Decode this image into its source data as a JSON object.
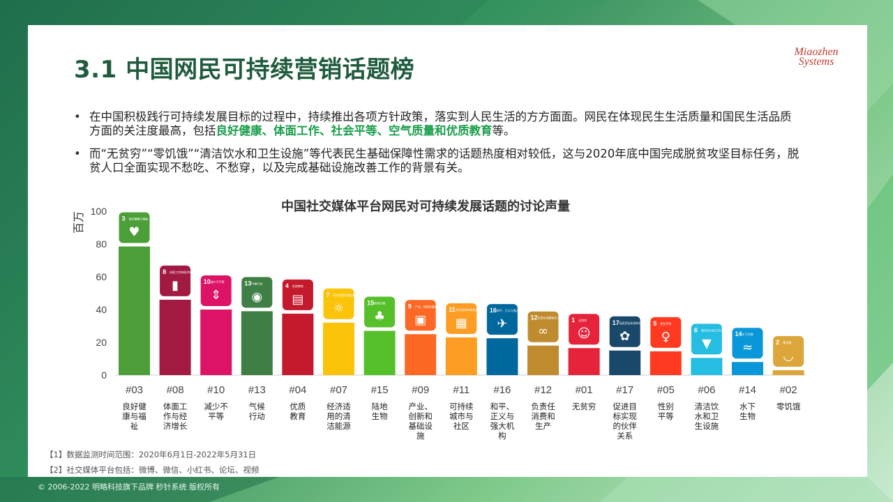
{
  "slide": {
    "title": "3.1 中国网民可持续营销话题榜",
    "logo_line1": "Miaozhen",
    "logo_line2": "Systems",
    "bullet1_part1": "在中国积极践行可持续发展目标的过程中，持续推出各项方针政策，落实到人民生活的方方面面。网民在体现民生生活质量和国民生活品质方面的关注度最高，包括",
    "bullet1_highlight": "良好健康、体面工作、社会平等、空气质量和优质教育",
    "bullet1_part2": "等。",
    "bullet2": "而“无贫穷”“零饥饿”“清洁饮水和卫生设施”等代表民生基础保障性需求的话题热度相对较低，这与2020年底中国完成脱贫攻坚目标任务，脱贫人口全面实现不愁吃、不愁穿，以及完成基础设施改善工作的背景有关。",
    "footnote1": "【1】数据监测时间范围：2020年6月1日-2022年5月31日",
    "footnote2": "【2】社交媒体平台包括：微博、微信、小红书、论坛、视频",
    "copyright": "© 2006-2022 明略科技旗下品牌 秒针系统 版权所有",
    "highlight_color": "#1a9e4a",
    "title_color": "#1f5b3d"
  },
  "chart_data": {
    "type": "bar",
    "title": "中国社交媒体平台网民对可持续发展话题的讨论声量",
    "ylabel": "百万",
    "ylim": [
      0,
      100
    ],
    "yticks": [
      0,
      20,
      40,
      60,
      80,
      100
    ],
    "grid": false,
    "categories": [
      "#03",
      "#08",
      "#10",
      "#13",
      "#04",
      "#07",
      "#15",
      "#09",
      "#11",
      "#16",
      "#12",
      "#01",
      "#17",
      "#05",
      "#06",
      "#14",
      "#02"
    ],
    "names": [
      [
        "良好健",
        "康与福",
        "祉"
      ],
      [
        "体面工",
        "作与经",
        "济增长"
      ],
      [
        "减少不",
        "平等"
      ],
      [
        "气候",
        "行动"
      ],
      [
        "优质",
        "教育"
      ],
      [
        "经济适",
        "用的清",
        "洁能源"
      ],
      [
        "陆地",
        "生物"
      ],
      [
        "产业、",
        "创新和",
        "基础设",
        "施"
      ],
      [
        "可持续",
        "城市与",
        "社区"
      ],
      [
        "和平、",
        "正义与",
        "强大机",
        "构"
      ],
      [
        "负责任",
        "消费和",
        "生产"
      ],
      [
        "无贫穷"
      ],
      [
        "促进目",
        "标实现",
        "的伙伴",
        "关系"
      ],
      [
        "性别",
        "平等"
      ],
      [
        "清洁饮",
        "水和卫",
        "生设施"
      ],
      [
        "水下",
        "生物"
      ],
      [
        "零饥饿"
      ]
    ],
    "values": [
      78.5,
      46,
      40,
      39,
      37.5,
      32,
      27,
      25,
      23,
      22.5,
      18,
      16.5,
      15,
      14.5,
      10.5,
      8,
      3
    ],
    "colors": [
      "#4c9f38",
      "#a21942",
      "#dd1367",
      "#3f7e44",
      "#c5192d",
      "#fcc30b",
      "#56c02b",
      "#fd6925",
      "#fd9d24",
      "#00689d",
      "#bf8b2e",
      "#e5243b",
      "#19486a",
      "#ff3a21",
      "#26bde2",
      "#0a97d9",
      "#dda63a"
    ],
    "icons": [
      "heart-pulse-icon",
      "growth-chart-icon",
      "equality-arrows-icon",
      "eye-globe-icon",
      "book-icon",
      "sun-energy-icon",
      "tree-icon",
      "cubes-icon",
      "city-icon",
      "dove-icon",
      "infinity-icon",
      "family-icon",
      "flower-icon",
      "gender-icon",
      "water-drop-icon",
      "fish-icon",
      "bowl-icon"
    ],
    "icon_glyphs": [
      "♥",
      "▮",
      "⇕",
      "◉",
      "▤",
      "☼",
      "♣",
      "▣",
      "▦",
      "✈",
      "∞",
      "☺",
      "✿",
      "♀",
      "▼",
      "≈",
      "◡"
    ],
    "icon_captions": [
      "良好健康与福祉",
      "体面工作和经济增长",
      "减少不平等",
      "气候行动",
      "优质教育",
      "经济适用的清洁能源",
      "陆地生物",
      "产业、创新和基础设施",
      "可持续城市和社区",
      "和平、正义与强大机构",
      "负责任消费和生产",
      "无贫穷",
      "促进目标实现的伙伴关系",
      "性别平等",
      "清洁饮水和卫生设施",
      "水下生物",
      "零饥饿"
    ],
    "icon_numbers": [
      "3",
      "8",
      "10",
      "13",
      "4",
      "7",
      "15",
      "9",
      "11",
      "16",
      "12",
      "1",
      "17",
      "5",
      "6",
      "14",
      "2"
    ]
  }
}
